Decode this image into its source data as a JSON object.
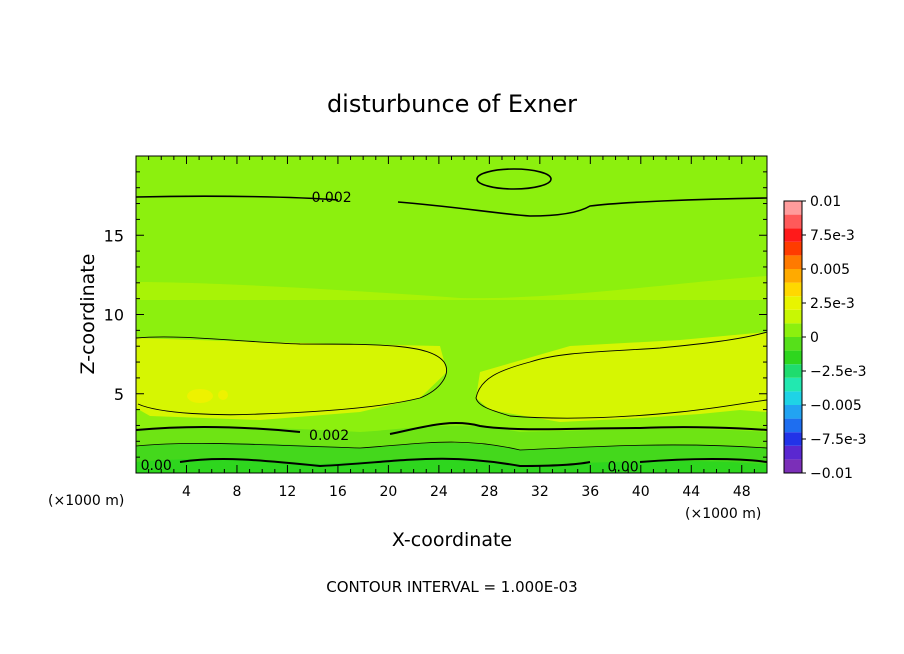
{
  "chart_data": {
    "type": "heatmap",
    "title": "disturbunce of Exner",
    "xlabel": "X-coordinate",
    "ylabel": "Z-coordinate",
    "x_unit_left": "(×1000 m)",
    "x_unit_right": "(×1000 m)",
    "xlim": [
      0,
      50
    ],
    "ylim": [
      0,
      20
    ],
    "x_ticks": [
      4,
      8,
      12,
      16,
      20,
      24,
      28,
      32,
      36,
      40,
      44,
      48
    ],
    "x_tick_labels": [
      "4",
      "8",
      "12",
      "16",
      "20",
      "24",
      "28",
      "32",
      "36",
      "40",
      "44",
      "48"
    ],
    "y_ticks": [
      5,
      10,
      15
    ],
    "y_tick_labels": [
      "5",
      "10",
      "15"
    ],
    "colorbar": {
      "labels": [
        "0.01",
        "7.5e-3",
        "0.005",
        "2.5e-3",
        "0",
        "−2.5e-3",
        "−0.005",
        "−7.5e-3",
        "−0.01"
      ],
      "range": [
        -0.01,
        0.01
      ],
      "colors": [
        "#7b2fb8",
        "#5a28d0",
        "#2233e8",
        "#1e6ef0",
        "#22a3f2",
        "#1fd3e6",
        "#22e8b0",
        "#1fdc6e",
        "#2ed61e",
        "#56e01a",
        "#8cf00e",
        "#c8f704",
        "#e8f400",
        "#ffd800",
        "#ffaa00",
        "#ff7a00",
        "#ff3c00",
        "#ff1a1a",
        "#ff5a5a",
        "#ff9c9c"
      ]
    },
    "contour_labels": [
      {
        "text": "0.002",
        "x": 15.5,
        "y": 17.4
      },
      {
        "text": "0.002",
        "x": 15.3,
        "y": 2.4
      },
      {
        "text": "0.00",
        "x": 1.6,
        "y": 0.5
      },
      {
        "text": "0.00",
        "x": 38.6,
        "y": 0.4
      }
    ],
    "footer": "CONTOUR INTERVAL = 1.000E-03"
  }
}
